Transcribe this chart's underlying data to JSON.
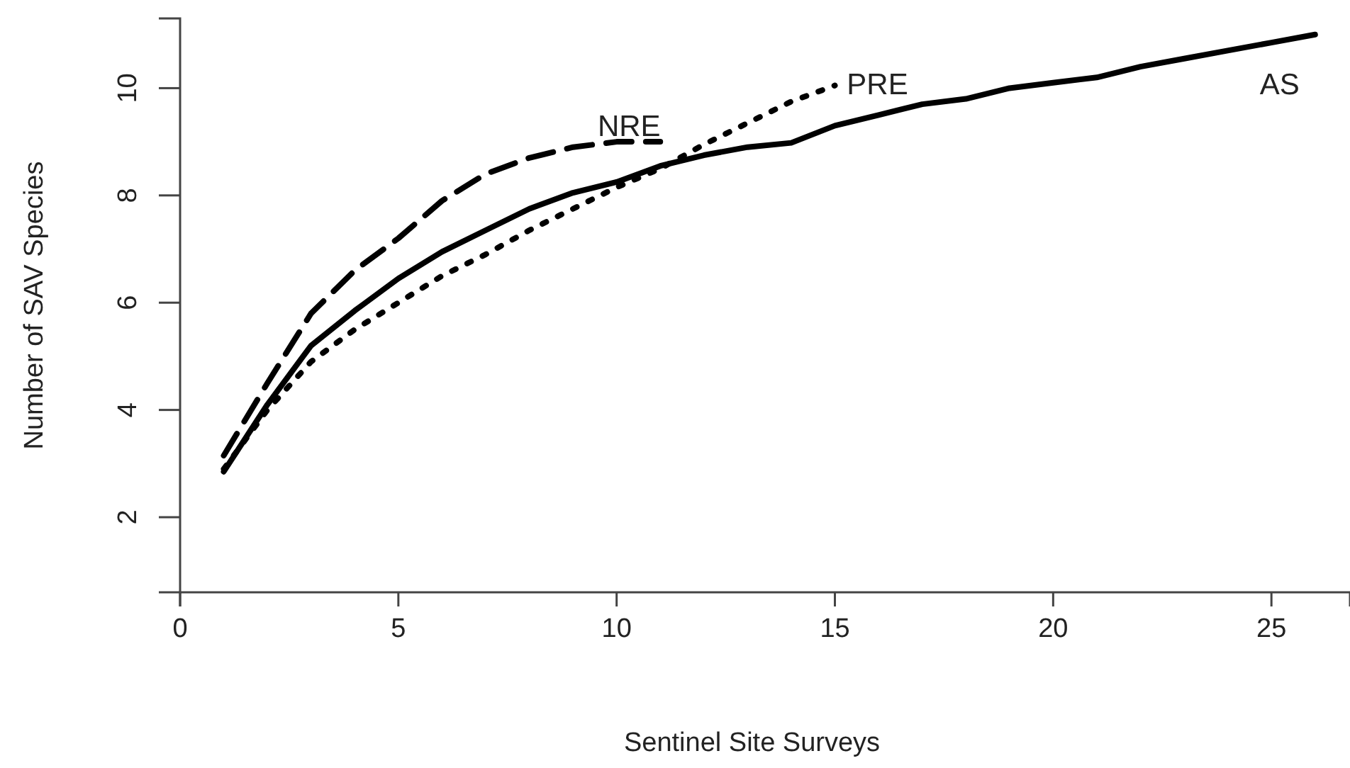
{
  "chart_data": {
    "type": "line",
    "xlabel": "Sentinel Site Surveys",
    "ylabel": "Number of SAV Species",
    "xlim": [
      0,
      26.8
    ],
    "xticks": [
      0,
      5,
      10,
      15,
      20,
      25
    ],
    "ylim": [
      0.6,
      11.3
    ],
    "yticks": [
      2,
      4,
      6,
      8,
      10
    ],
    "grid": false,
    "legend": false,
    "marker": "none",
    "series": [
      {
        "name": "AS",
        "color": "#000000",
        "line_style": "solid",
        "x": [
          1,
          2,
          3,
          4,
          5,
          6,
          7,
          8,
          9,
          10,
          11,
          12,
          13,
          14,
          15,
          16,
          17,
          18,
          19,
          20,
          21,
          22,
          23,
          24,
          25,
          26
        ],
        "values": [
          2.85,
          4.1,
          5.2,
          5.85,
          6.45,
          6.95,
          7.35,
          7.75,
          8.05,
          8.25,
          8.55,
          8.75,
          8.9,
          8.98,
          9.3,
          9.5,
          9.7,
          9.8,
          10.0,
          10.1,
          10.2,
          10.4,
          10.55,
          10.7,
          10.85,
          11.0
        ]
      },
      {
        "name": "NRE",
        "color": "#000000",
        "line_style": "dashed",
        "x": [
          1,
          2,
          3,
          4,
          5,
          6,
          7,
          8,
          9,
          10,
          11
        ],
        "values": [
          3.15,
          4.5,
          5.8,
          6.6,
          7.2,
          7.9,
          8.4,
          8.7,
          8.9,
          9.0,
          9.0
        ]
      },
      {
        "name": "PRE",
        "color": "#000000",
        "line_style": "dotted",
        "x": [
          1,
          2,
          3,
          4,
          5,
          6,
          7,
          8,
          9,
          10,
          11,
          12,
          13,
          14,
          15
        ],
        "values": [
          2.9,
          4.0,
          4.9,
          5.5,
          6.0,
          6.5,
          6.9,
          7.35,
          7.75,
          8.15,
          8.5,
          8.95,
          9.35,
          9.75,
          10.05
        ]
      }
    ]
  }
}
